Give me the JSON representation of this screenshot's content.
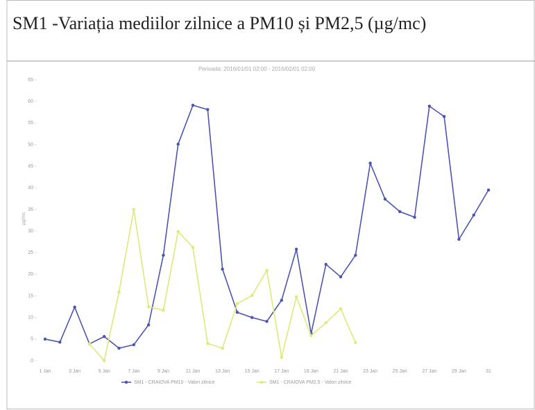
{
  "chart_data": {
    "type": "line",
    "title": "SM1 -Variația mediilor zilnice a PM10 și PM2,5 (µg/mc)",
    "subtitle": "Perioada: 2016/01/01 02:00 - 2016/02/01 02:00",
    "y_label": "µg/mc",
    "categories": [
      "1 Jan",
      null,
      "3 Jan",
      null,
      "5 Jan",
      null,
      "7 Jan",
      null,
      "9 Jan",
      null,
      "11 Jan",
      null,
      "13 Jan",
      null,
      "15 Jan",
      null,
      "17 Jan",
      null,
      "19 Jan",
      null,
      "21 Jan",
      null,
      "23 Jan",
      null,
      "25 Jan",
      null,
      "27 Jan",
      null,
      "29 Jan",
      null,
      "31"
    ],
    "series": [
      {
        "name": "SM1 - CRAIOVA PM10 - Valori zilnice",
        "color": "#4a55b0",
        "values": [
          5.0,
          4.3,
          12.4,
          3.9,
          5.6,
          2.9,
          3.7,
          8.3,
          24.4,
          50.1,
          59.1,
          58.1,
          21.2,
          11.2,
          10.0,
          9.1,
          14.0,
          25.8,
          6.3,
          22.3,
          19.4,
          24.4,
          45.7,
          37.4,
          34.5,
          33.2,
          58.9,
          56.5,
          28.1,
          33.7,
          39.5
        ]
      },
      {
        "name": "SM1 - CRAIOVA PM2,5 - Valori zilnice",
        "color": "#dfe97a",
        "values": [
          null,
          null,
          null,
          3.9,
          0,
          15.9,
          35.0,
          12.5,
          11.7,
          29.9,
          26.2,
          4.0,
          2.9,
          13.2,
          15.1,
          20.9,
          0.8,
          14.8,
          5.8,
          8.8,
          12.0,
          4.2,
          null,
          null,
          null,
          null,
          null,
          null,
          null,
          null,
          null
        ]
      }
    ],
    "ylim": [
      0,
      65
    ],
    "yticks": [
      0,
      5,
      10,
      15,
      20,
      25,
      30,
      35,
      40,
      45,
      50,
      55,
      60,
      65
    ],
    "grid": false
  }
}
